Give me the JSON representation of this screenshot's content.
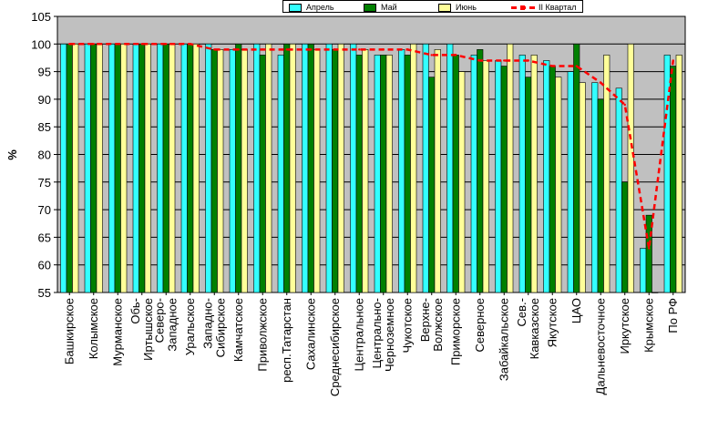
{
  "chart_data": {
    "type": "bar",
    "title": "",
    "xlabel": "",
    "ylabel": "%",
    "ylim": [
      55,
      105
    ],
    "yticks": [
      55,
      60,
      65,
      70,
      75,
      80,
      85,
      90,
      95,
      100,
      105
    ],
    "grid": "horizontal",
    "legend_position": "top",
    "plot_background": "#c0c0c0",
    "categories": [
      "Башкирское",
      "Колымское",
      "Мурманское",
      "Обь-Иртышское",
      "Северо-Западное",
      "Уральское",
      "Западно-Сибирское",
      "Камчатское",
      "Приволжское",
      "респ.Татарстан",
      "Сахалинское",
      "Среднесибирское",
      "Центральное",
      "Центрально-Черноземное",
      "Чукотское",
      "Верхне-Волжское",
      "Приморское",
      "Северное",
      "Забайкальское",
      "Сев.-Кавказское",
      "Якутское",
      "ЦАО",
      "Дальневосточное",
      "Иркутское",
      "Крымское",
      "По РФ"
    ],
    "series": [
      {
        "name": "Апрель",
        "color": "#33ffff",
        "kind": "bar",
        "values": [
          100,
          100,
          100,
          100,
          100,
          100,
          100,
          99,
          100,
          98,
          100,
          100,
          100,
          98,
          99,
          100,
          100,
          98,
          97,
          98,
          97,
          95,
          93,
          92,
          63,
          98
        ]
      },
      {
        "name": "Май",
        "color": "#008000",
        "kind": "bar",
        "values": [
          100,
          100,
          100,
          100,
          100,
          100,
          99,
          100,
          98,
          100,
          100,
          99,
          98,
          98,
          98,
          94,
          98,
          99,
          96,
          94,
          96,
          100,
          90,
          75,
          69,
          96
        ]
      },
      {
        "name": "Июнь",
        "color": "#ffff99",
        "kind": "bar",
        "values": [
          100,
          100,
          100,
          100,
          100,
          100,
          99,
          99,
          100,
          100,
          99,
          100,
          99,
          98,
          100,
          99,
          95,
          97,
          100,
          98,
          94,
          93,
          98,
          100,
          55,
          98
        ]
      },
      {
        "name": "II Квартал",
        "color": "#ff0000",
        "kind": "line",
        "values": [
          100,
          100,
          100,
          100,
          100,
          100,
          99,
          99,
          99,
          99,
          99,
          99,
          99,
          99,
          99,
          98,
          98,
          97,
          97,
          97,
          96,
          96,
          93,
          89,
          63,
          97
        ]
      }
    ]
  }
}
